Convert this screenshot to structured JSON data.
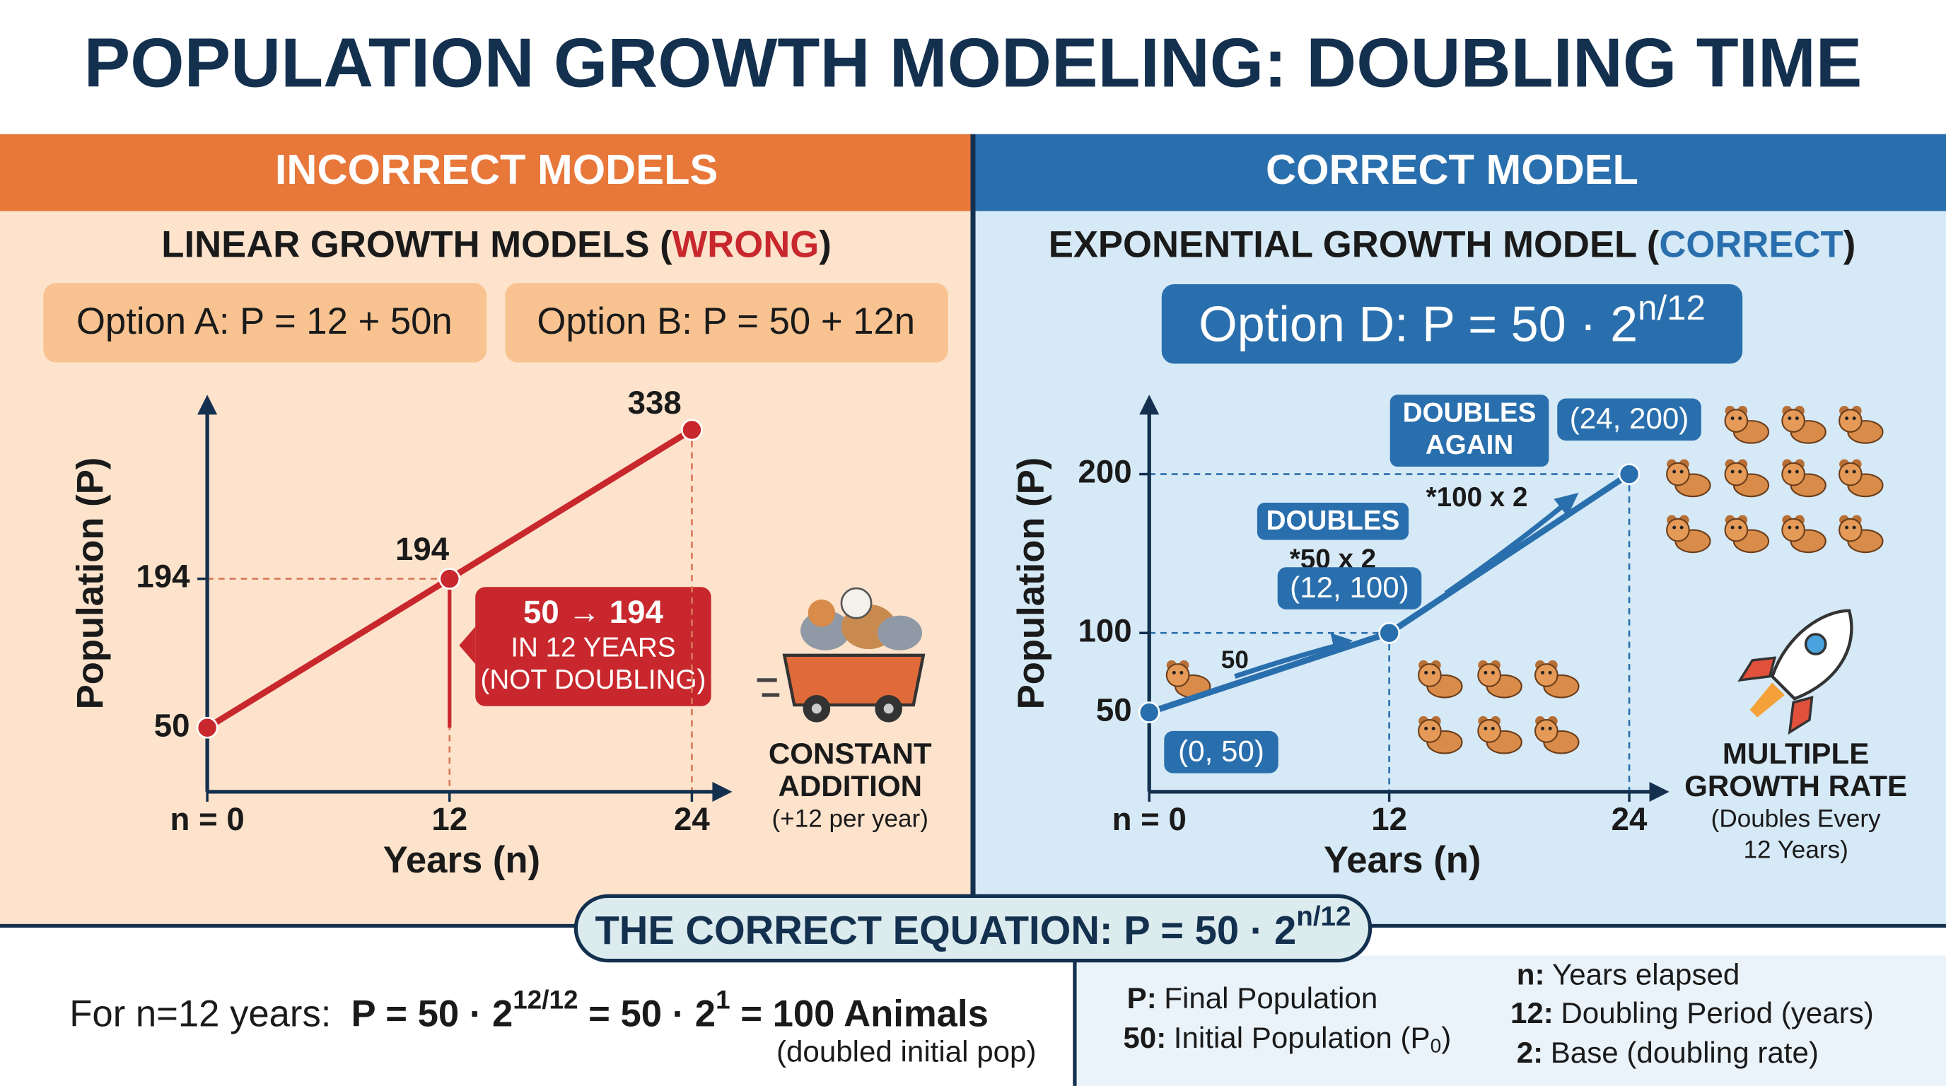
{
  "title": "POPULATION GROWTH MODELING: DOUBLING TIME",
  "left": {
    "header": "INCORRECT MODELS",
    "subtitle": [
      "LINEAR GROWTH MODELS (",
      "WRONG",
      ")"
    ],
    "options": [
      "Option A: P = 12 + 50n",
      "Option B: P = 50 + 12n"
    ],
    "callout": [
      "50 → 194",
      "IN 12 YEARS",
      "(NOT DOUBLING)"
    ],
    "side_note": [
      "CONSTANT",
      "ADDITION",
      "(+12 per year)"
    ]
  },
  "right": {
    "header": "CORRECT MODEL",
    "subtitle": [
      "EXPONENTIAL GROWTH MODEL (",
      "CORRECT",
      ")"
    ],
    "option": {
      "base": "Option D: P = 50 · 2",
      "exponent": "n/12"
    },
    "annotations": {
      "doubles": "DOUBLES",
      "doubles_math": "*50 x 2",
      "doubles_again": [
        "DOUBLES",
        "AGAIN"
      ],
      "doubles_again_math": "*100 x 2",
      "start_count": "50"
    },
    "side_note": [
      "MULTIPLE",
      "GROWTH RATE",
      "(Doubles Every",
      "12 Years)"
    ]
  },
  "chart_data": [
    {
      "type": "line",
      "x_label": "Years (n)",
      "y_label": "Population (P)",
      "x": [
        0,
        12,
        24
      ],
      "values": [
        50,
        194,
        338
      ],
      "color": "#c8282d",
      "xlim": [
        0,
        26
      ],
      "ylim": [
        -12,
        372
      ],
      "xticks": [
        {
          "value": 0,
          "label": "n = 0"
        },
        12,
        24
      ],
      "yticks": [
        50,
        194
      ]
    },
    {
      "type": "line",
      "x_label": "Years (n)",
      "y_label": "Population (P)",
      "x": [
        0,
        12,
        24
      ],
      "values": [
        50,
        100,
        200
      ],
      "point_labels": [
        "(0, 50)",
        "(12, 100)",
        "(24, 200)"
      ],
      "color": "#2a6fad",
      "xlim": [
        0,
        26
      ],
      "ylim": [
        0,
        250
      ],
      "xticks": [
        {
          "value": 0,
          "label": "n = 0"
        },
        12,
        24
      ],
      "yticks": [
        50,
        100,
        200
      ]
    }
  ],
  "footer": {
    "banner": {
      "base": "THE CORRECT EQUATION: P = 50 · 2",
      "exponent": "n/12"
    },
    "example": [
      "For n=12 years:",
      "P = 50 · 2",
      "12/12",
      " = 50 · 2",
      "1",
      " = 100 Animals"
    ],
    "example_note": "(doubled initial pop)",
    "definitions": [
      {
        "key": "P:",
        "text": "Final Population"
      },
      {
        "key": "50:",
        "text": "Initial Population (P",
        "sub": "0",
        "end": ")"
      },
      {
        "key": "n:",
        "text": "Years elapsed"
      },
      {
        "key": "12:",
        "text": "Doubling Period (years)"
      },
      {
        "key": "2:",
        "text": "Base (doubling rate)"
      }
    ]
  }
}
